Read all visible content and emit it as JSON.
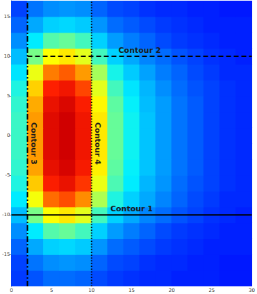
{
  "chart_data": {
    "type": "heatmap",
    "xlim": [
      0,
      30
    ],
    "xticks": [
      0,
      5,
      10,
      15,
      20,
      25,
      30
    ],
    "ylim": [
      -19,
      17
    ],
    "yticks": [
      -15,
      -10,
      -5,
      0,
      5,
      10,
      15
    ],
    "grid": false,
    "cell_x": [
      1,
      3,
      5,
      7,
      9,
      11,
      13,
      15,
      17,
      19,
      21,
      23,
      25,
      27,
      29
    ],
    "cell_y": [
      -18,
      -16,
      -14,
      -12,
      -10,
      -8,
      -6,
      -4,
      -2,
      0,
      2,
      4,
      6,
      8,
      10,
      12,
      14,
      16
    ],
    "cells": [
      [
        4,
        7,
        10,
        10,
        9,
        6,
        4,
        3,
        2,
        2,
        1,
        1,
        1,
        0,
        0
      ],
      [
        5,
        11,
        14,
        15,
        14,
        9,
        6,
        5,
        3,
        2,
        2,
        1,
        1,
        0,
        0
      ],
      [
        9,
        18,
        24,
        25,
        23,
        15,
        10,
        8,
        6,
        4,
        3,
        2,
        1,
        1,
        1
      ],
      [
        14,
        28,
        38,
        40,
        36,
        24,
        16,
        12,
        9,
        6,
        4,
        3,
        2,
        1,
        1
      ],
      [
        21,
        42,
        57,
        60,
        54,
        36,
        24,
        18,
        13,
        10,
        7,
        5,
        3,
        2,
        1
      ],
      [
        28,
        56,
        76,
        80,
        72,
        48,
        32,
        24,
        18,
        13,
        9,
        6,
        4,
        2,
        2
      ],
      [
        32,
        64,
        87,
        92,
        83,
        55,
        37,
        28,
        20,
        15,
        10,
        7,
        5,
        3,
        2
      ],
      [
        34,
        69,
        93,
        98,
        88,
        59,
        39,
        29,
        22,
        16,
        11,
        8,
        5,
        3,
        2
      ],
      [
        35,
        70,
        95,
        100,
        90,
        60,
        40,
        30,
        22,
        16,
        11,
        8,
        5,
        3,
        2
      ],
      [
        35,
        70,
        95,
        100,
        90,
        60,
        40,
        30,
        22,
        16,
        11,
        8,
        5,
        3,
        2
      ],
      [
        35,
        70,
        95,
        100,
        90,
        60,
        40,
        30,
        22,
        16,
        11,
        8,
        5,
        3,
        2
      ],
      [
        34,
        68,
        92,
        97,
        87,
        58,
        39,
        29,
        21,
        16,
        11,
        8,
        5,
        3,
        2
      ],
      [
        32,
        63,
        86,
        90,
        81,
        54,
        36,
        27,
        20,
        14,
        10,
        7,
        5,
        3,
        2
      ],
      [
        27,
        55,
        74,
        78,
        70,
        47,
        31,
        23,
        17,
        12,
        9,
        6,
        4,
        2,
        2
      ],
      [
        21,
        42,
        57,
        60,
        54,
        36,
        24,
        18,
        13,
        10,
        7,
        5,
        3,
        2,
        1
      ],
      [
        14,
        28,
        38,
        40,
        36,
        24,
        16,
        12,
        9,
        6,
        4,
        3,
        2,
        1,
        1
      ],
      [
        9,
        18,
        24,
        25,
        23,
        15,
        10,
        8,
        6,
        4,
        3,
        2,
        1,
        1,
        1
      ],
      [
        5,
        11,
        14,
        15,
        14,
        9,
        6,
        5,
        3,
        2,
        2,
        1,
        1,
        0,
        0
      ]
    ],
    "series": [
      {
        "name": "Contour 1",
        "type": "line",
        "line_style": "solid",
        "color": "#000000",
        "x": [
          0,
          30
        ],
        "values": [
          -10,
          -10
        ]
      },
      {
        "name": "Contour 2",
        "type": "line",
        "line_style": "dashed",
        "color": "#000000",
        "x": [
          2,
          30
        ],
        "values": [
          10,
          10
        ]
      },
      {
        "name": "Contour 3",
        "type": "line",
        "line_style": "dashdot",
        "color": "#000000",
        "x": [
          2,
          2
        ],
        "values": [
          -19,
          17
        ]
      },
      {
        "name": "Contour 4",
        "type": "line",
        "line_style": "dotted",
        "color": "#000000",
        "x": [
          10,
          10
        ],
        "values": [
          -19,
          17
        ]
      }
    ]
  }
}
